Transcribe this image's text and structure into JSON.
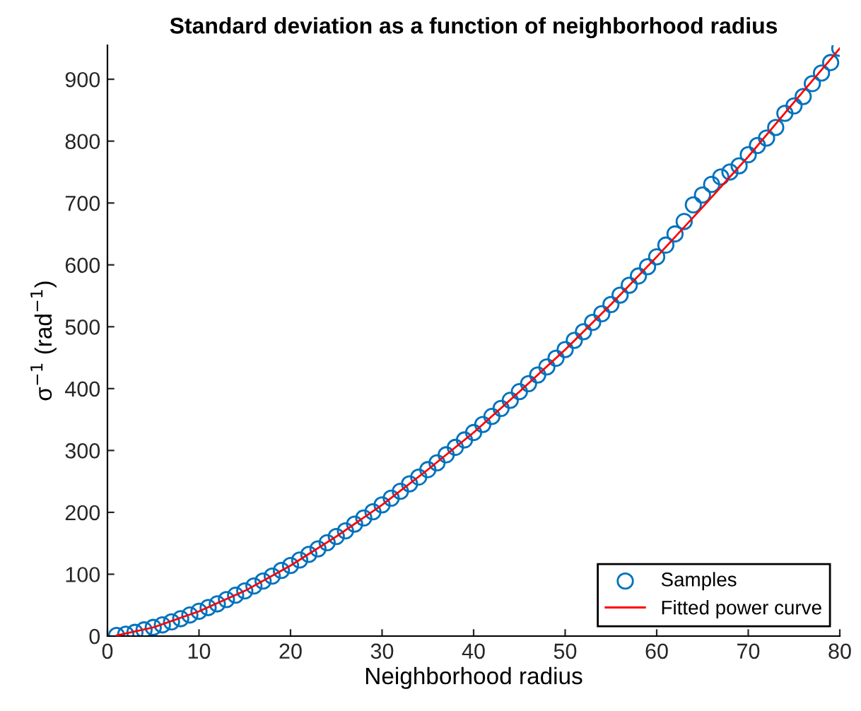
{
  "chart_data": {
    "type": "scatter",
    "title": "Standard deviation as a function of neighborhood radius",
    "xlabel": "Neighborhood radius",
    "ylabel": "σ$^{−1}$ (rad$^{−1}$)",
    "xlim": [
      0,
      80
    ],
    "xticks": [
      0,
      10,
      20,
      30,
      40,
      50,
      60,
      70,
      80
    ],
    "ylim": [
      0,
      955
    ],
    "yticks": [
      0,
      100,
      200,
      300,
      400,
      500,
      600,
      700,
      800,
      900
    ],
    "grid": false,
    "legend": "bottom right",
    "series": [
      {
        "name": "Samples",
        "marker": "circle",
        "color": "#0072bd",
        "x": [
          1,
          2,
          3,
          4,
          5,
          6,
          7,
          8,
          9,
          10,
          11,
          12,
          13,
          14,
          15,
          16,
          17,
          18,
          19,
          20,
          21,
          22,
          23,
          24,
          25,
          26,
          27,
          28,
          29,
          30,
          31,
          32,
          33,
          34,
          35,
          36,
          37,
          38,
          39,
          40,
          41,
          42,
          43,
          44,
          45,
          46,
          47,
          48,
          49,
          50,
          51,
          52,
          53,
          54,
          55,
          56,
          57,
          58,
          59,
          60,
          61,
          62,
          63,
          64,
          65,
          66,
          67,
          68,
          69,
          70,
          71,
          72,
          73,
          74,
          75,
          76,
          77,
          78,
          79,
          80
        ],
        "values": [
          1,
          3,
          6,
          10,
          14,
          18,
          23,
          28,
          34,
          40,
          46,
          52,
          59,
          66,
          73,
          81,
          89,
          97,
          106,
          114,
          123,
          132,
          141,
          151,
          161,
          170,
          181,
          191,
          201,
          212,
          223,
          234,
          246,
          257,
          269,
          280,
          293,
          305,
          317,
          329,
          342,
          355,
          368,
          381,
          395,
          408,
          422,
          435,
          449,
          463,
          478,
          492,
          507,
          521,
          536,
          551,
          567,
          582,
          597,
          613,
          632,
          650,
          670,
          697,
          713,
          730,
          742,
          750,
          760,
          778,
          793,
          805,
          822,
          845,
          857,
          872,
          893,
          910,
          927,
          950
        ]
      },
      {
        "name": "Fitted power curve",
        "type": "line",
        "marker": "none",
        "line_style": "solid",
        "color": "#ff0000",
        "x": [
          1,
          5,
          10,
          15,
          20,
          25,
          30,
          35,
          40,
          45,
          50,
          55,
          60,
          65,
          70,
          75,
          80
        ],
        "values": [
          1,
          14,
          40,
          73,
          114,
          161,
          212,
          269,
          329,
          395,
          463,
          536,
          613,
          693,
          775,
          863,
          950
        ]
      }
    ]
  }
}
